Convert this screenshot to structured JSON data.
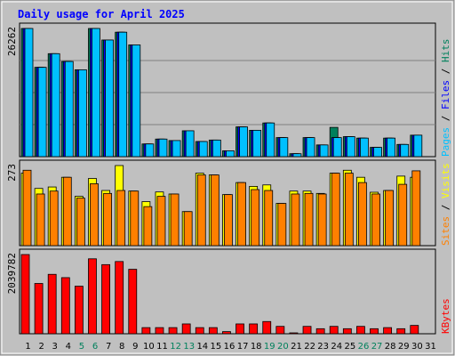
{
  "title": "Daily usage for April 2025",
  "colors": {
    "background": "#C0C0C0",
    "frame": "#808080",
    "title": "#0000FF",
    "grid": "#808080",
    "hits": "#00805C",
    "files": "#0000FF",
    "pages": "#00C0FF",
    "visits": "#FFFF00",
    "sites": "#FF8000",
    "kbytes": "#FF0000",
    "weekend_label": "#00805C",
    "weekday_label": "#000000"
  },
  "chart_data": {
    "type": "bar",
    "days": [
      "1",
      "2",
      "3",
      "4",
      "5",
      "6",
      "7",
      "8",
      "9",
      "10",
      "11",
      "12",
      "13",
      "14",
      "15",
      "16",
      "17",
      "18",
      "19",
      "20",
      "21",
      "22",
      "23",
      "24",
      "25",
      "26",
      "27",
      "28",
      "29",
      "30",
      "31"
    ],
    "weekend_days": [
      "5",
      "6",
      "12",
      "13",
      "19",
      "20",
      "26",
      "27"
    ],
    "panels": [
      {
        "name": "top",
        "max_label": "26262",
        "ymax": 26262,
        "right_label": [
          "Pages",
          "Files",
          "Hits"
        ],
        "series": [
          {
            "name": "Hits",
            "values": [
              26262,
              18300,
              21100,
              19500,
              17800,
              26262,
              23900,
              25500,
              22900,
              2600,
              3600,
              3300,
              5300,
              3100,
              3400,
              1200,
              6100,
              5400,
              6900,
              3900,
              600,
              3900,
              2400,
              6000,
              4100,
              3800,
              1900,
              3800,
              2500,
              4400,
              null
            ]
          },
          {
            "name": "Files",
            "values": [
              26262,
              18300,
              21100,
              19500,
              17800,
              26262,
              23900,
              25500,
              22900,
              2600,
              3600,
              3300,
              5300,
              3100,
              3400,
              1200,
              6100,
              5400,
              6900,
              3900,
              600,
              3900,
              2400,
              3900,
              4100,
              3800,
              1900,
              3800,
              2500,
              4400,
              null
            ]
          },
          {
            "name": "Pages",
            "values": [
              26262,
              18300,
              21100,
              19500,
              17800,
              26262,
              23900,
              25500,
              22900,
              2600,
              3600,
              3300,
              5300,
              3100,
              3400,
              1200,
              6100,
              5400,
              6900,
              3900,
              600,
              3900,
              2400,
              3900,
              4100,
              3800,
              1900,
              3800,
              2500,
              4400,
              null
            ]
          }
        ]
      },
      {
        "name": "middle",
        "max_label": "273",
        "ymax": 273,
        "right_label": [
          "Sites",
          "Visits"
        ],
        "series": [
          {
            "name": "Visits",
            "values": [
              247,
              195,
              200,
              233,
              168,
              229,
              188,
              273,
              186,
              150,
              183,
              176,
              116,
              247,
              241,
              174,
              215,
              202,
              207,
              144,
              186,
              186,
              178,
              247,
              257,
              233,
              182,
              188,
              237,
              233,
              null
            ]
          },
          {
            "name": "Sites",
            "values": [
              257,
              176,
              186,
              233,
              162,
              211,
              178,
              188,
              186,
              133,
              168,
              176,
              116,
              241,
              241,
              174,
              215,
              191,
              188,
              144,
              176,
              178,
              176,
              247,
              247,
              215,
              176,
              188,
              209,
              255,
              null
            ]
          }
        ]
      },
      {
        "name": "bottom",
        "max_label": "2039782",
        "ymax": 2039782,
        "right_label": [
          "KBytes"
        ],
        "series": [
          {
            "name": "KBytes",
            "values": [
              2039782,
              1295000,
              1530000,
              1445000,
              1225000,
              1930000,
              1780000,
              1860000,
              1660000,
              158000,
              158000,
              158000,
              253000,
              158000,
              158000,
              55000,
              253000,
              253000,
              315000,
              190000,
              20000,
              190000,
              130000,
              190000,
              130000,
              190000,
              130000,
              158000,
              130000,
              215000,
              null
            ]
          }
        ]
      }
    ]
  }
}
